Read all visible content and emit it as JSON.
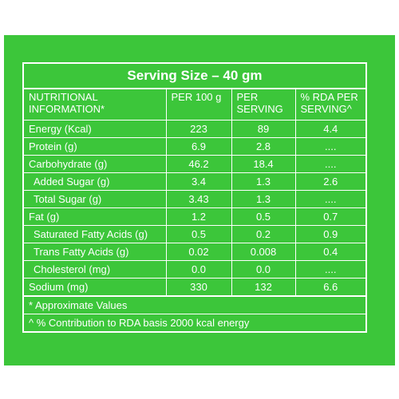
{
  "title": "Serving Size – 40 gm",
  "headers": {
    "col1": "NUTRITIONAL\nINFORMATION*",
    "col2": "PER 100 g",
    "col3": "PER\nSERVING",
    "col4": "% RDA PER\nSERVING^"
  },
  "rows": [
    {
      "name": "Energy (Kcal)",
      "per100": "223",
      "serving": "89",
      "rda": "4.4",
      "indent": false
    },
    {
      "name": "Protein (g)",
      "per100": "6.9",
      "serving": "2.8",
      "rda": "....",
      "indent": false
    },
    {
      "name": "Carbohydrate (g)",
      "per100": "46.2",
      "serving": "18.4",
      "rda": "....",
      "indent": false
    },
    {
      "name": "Added Sugar (g)",
      "per100": "3.4",
      "serving": "1.3",
      "rda": "2.6",
      "indent": true
    },
    {
      "name": "Total Sugar (g)",
      "per100": "3.43",
      "serving": "1.3",
      "rda": "....",
      "indent": true
    },
    {
      "name": "Fat (g)",
      "per100": "1.2",
      "serving": "0.5",
      "rda": "0.7",
      "indent": false
    },
    {
      "name": "Saturated Fatty Acids (g)",
      "per100": "0.5",
      "serving": "0.2",
      "rda": "0.9",
      "indent": true
    },
    {
      "name": "Trans Fatty Acids (g)",
      "per100": "0.02",
      "serving": "0.008",
      "rda": "0.4",
      "indent": true
    },
    {
      "name": "Cholesterol (mg)",
      "per100": "0.0",
      "serving": "0.0",
      "rda": "....",
      "indent": true
    },
    {
      "name": "Sodium (mg)",
      "per100": "330",
      "serving": "132",
      "rda": "6.6",
      "indent": false
    }
  ],
  "footnotes": [
    "* Approximate Values",
    "^ % Contribution to RDA basis 2000 kcal energy"
  ],
  "colors": {
    "panel": "#3cc63a",
    "text": "#ffffff",
    "background": "#ffffff"
  }
}
